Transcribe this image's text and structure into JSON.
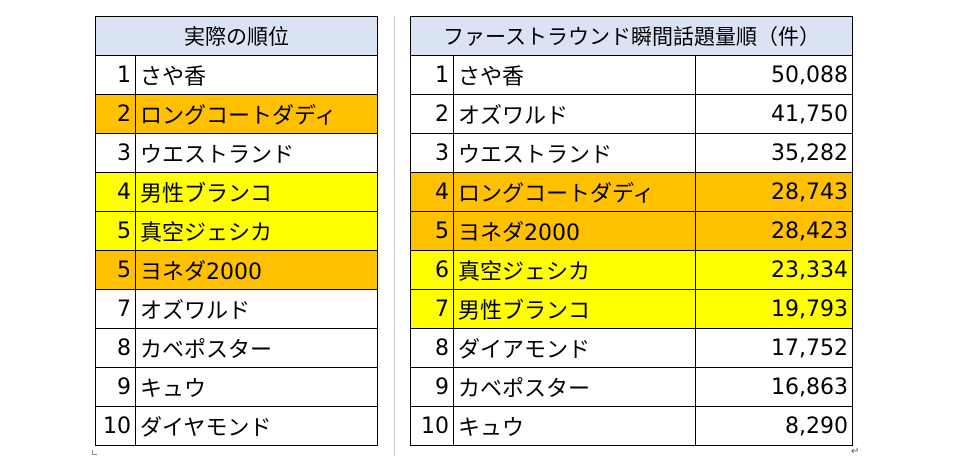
{
  "left_table": {
    "header": "実際の順位",
    "rows": [
      {
        "rank": "1",
        "name": "さや香",
        "highlight": "none"
      },
      {
        "rank": "2",
        "name": "ロングコートダディ",
        "highlight": "orange"
      },
      {
        "rank": "3",
        "name": "ウエストランド",
        "highlight": "none"
      },
      {
        "rank": "4",
        "name": "男性ブランコ",
        "highlight": "yellow"
      },
      {
        "rank": "5",
        "name": "真空ジェシカ",
        "highlight": "yellow"
      },
      {
        "rank": "5",
        "name": "ヨネダ2000",
        "highlight": "orange"
      },
      {
        "rank": "7",
        "name": "オズワルド",
        "highlight": "none"
      },
      {
        "rank": "8",
        "name": "カベポスター",
        "highlight": "none"
      },
      {
        "rank": "9",
        "name": "キュウ",
        "highlight": "none"
      },
      {
        "rank": "10",
        "name": "ダイヤモンド",
        "highlight": "none"
      }
    ]
  },
  "right_table": {
    "header": "ファーストラウンド瞬間話題量順（件）",
    "rows": [
      {
        "rank": "1",
        "name": "さや香",
        "count": "50,088",
        "highlight": "none"
      },
      {
        "rank": "2",
        "name": "オズワルド",
        "count": "41,750",
        "highlight": "none"
      },
      {
        "rank": "3",
        "name": "ウエストランド",
        "count": "35,282",
        "highlight": "none"
      },
      {
        "rank": "4",
        "name": "ロングコートダディ",
        "count": "28,743",
        "highlight": "orange"
      },
      {
        "rank": "5",
        "name": "ヨネダ2000",
        "count": "28,423",
        "highlight": "orange"
      },
      {
        "rank": "6",
        "name": "真空ジェシカ",
        "count": "23,334",
        "highlight": "yellow"
      },
      {
        "rank": "7",
        "name": "男性ブランコ",
        "count": "19,793",
        "highlight": "yellow"
      },
      {
        "rank": "8",
        "name": "ダイアモンド",
        "count": "17,752",
        "highlight": "none"
      },
      {
        "rank": "9",
        "name": "カベポスター",
        "count": "16,863",
        "highlight": "none"
      },
      {
        "rank": "10",
        "name": "キュウ",
        "count": "8,290",
        "highlight": "none"
      }
    ]
  },
  "colors": {
    "header_bg": "#dae3f3",
    "orange": "#ffc000",
    "yellow": "#ffff00",
    "border": "#000000"
  }
}
